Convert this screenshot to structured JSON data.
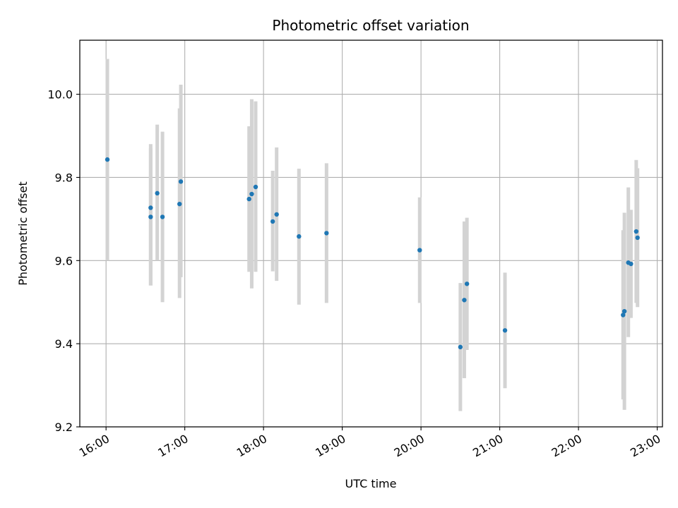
{
  "chart_data": {
    "type": "scatter",
    "title": "Photometric offset variation",
    "xlabel": "UTC time",
    "ylabel": "Photometric offset",
    "x_unit": "UTC hours",
    "xlim": [
      "15:40",
      "23:04"
    ],
    "ylim": [
      9.2,
      10.13
    ],
    "grid": true,
    "x_tick_labels": [
      "16:00",
      "17:00",
      "18:00",
      "19:00",
      "20:00",
      "21:00",
      "22:00",
      "23:00"
    ],
    "y_tick_labels": [
      "9.2",
      "9.4",
      "9.6",
      "9.8",
      "10.0"
    ],
    "colors": {
      "point": "#1f77b4",
      "errorbar": "#d3d3d3",
      "grid": "#b0b0b0"
    },
    "series": [
      {
        "points": [
          {
            "x": "16:01",
            "y": 9.843,
            "ylo": 9.6,
            "yhi": 10.085
          },
          {
            "x": "16:34",
            "y": 9.727,
            "ylo": 9.54,
            "yhi": 9.88
          },
          {
            "x": "16:34",
            "y": 9.705,
            "ylo": 9.54,
            "yhi": 9.87
          },
          {
            "x": "16:39",
            "y": 9.762,
            "ylo": 9.6,
            "yhi": 9.927
          },
          {
            "x": "16:43",
            "y": 9.705,
            "ylo": 9.5,
            "yhi": 9.91
          },
          {
            "x": "16:56",
            "y": 9.736,
            "ylo": 9.51,
            "yhi": 9.966
          },
          {
            "x": "16:57",
            "y": 9.79,
            "ylo": 9.56,
            "yhi": 10.023
          },
          {
            "x": "17:49",
            "y": 9.748,
            "ylo": 9.573,
            "yhi": 9.923
          },
          {
            "x": "17:51",
            "y": 9.76,
            "ylo": 9.533,
            "yhi": 9.988
          },
          {
            "x": "17:54",
            "y": 9.777,
            "ylo": 9.573,
            "yhi": 9.983
          },
          {
            "x": "18:07",
            "y": 9.694,
            "ylo": 9.574,
            "yhi": 9.816
          },
          {
            "x": "18:10",
            "y": 9.711,
            "ylo": 9.551,
            "yhi": 9.872
          },
          {
            "x": "18:27",
            "y": 9.658,
            "ylo": 9.494,
            "yhi": 9.821
          },
          {
            "x": "18:48",
            "y": 9.666,
            "ylo": 9.498,
            "yhi": 9.834
          },
          {
            "x": "19:59",
            "y": 9.625,
            "ylo": 9.498,
            "yhi": 9.752
          },
          {
            "x": "20:30",
            "y": 9.392,
            "ylo": 9.238,
            "yhi": 9.546
          },
          {
            "x": "20:33",
            "y": 9.505,
            "ylo": 9.317,
            "yhi": 9.694
          },
          {
            "x": "20:35",
            "y": 9.544,
            "ylo": 9.385,
            "yhi": 9.703
          },
          {
            "x": "21:04",
            "y": 9.432,
            "ylo": 9.293,
            "yhi": 9.571
          },
          {
            "x": "22:34",
            "y": 9.469,
            "ylo": 9.266,
            "yhi": 9.673
          },
          {
            "x": "22:35",
            "y": 9.478,
            "ylo": 9.241,
            "yhi": 9.715
          },
          {
            "x": "22:38",
            "y": 9.595,
            "ylo": 9.416,
            "yhi": 9.776
          },
          {
            "x": "22:40",
            "y": 9.592,
            "ylo": 9.462,
            "yhi": 9.722
          },
          {
            "x": "22:44",
            "y": 9.67,
            "ylo": 9.498,
            "yhi": 9.842
          },
          {
            "x": "22:45",
            "y": 9.655,
            "ylo": 9.488,
            "yhi": 9.822
          }
        ]
      }
    ]
  }
}
